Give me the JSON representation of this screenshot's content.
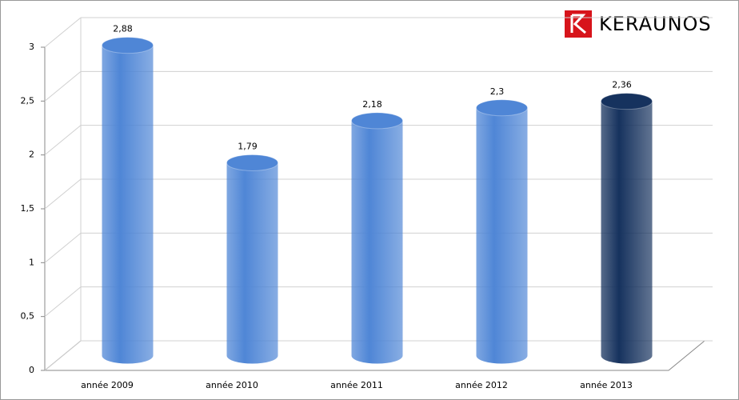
{
  "logo": "KERAUNOS",
  "chart_data": {
    "type": "bar",
    "categories": [
      "année 2009",
      "année 2010",
      "année 2011",
      "année 2012",
      "année 2013"
    ],
    "values": [
      2.88,
      1.79,
      2.18,
      2.3,
      2.36
    ],
    "value_labels": [
      "2,88",
      "1,79",
      "2,18",
      "2,3",
      "2,36"
    ],
    "colors": [
      "#4f86d6",
      "#4f86d6",
      "#4f86d6",
      "#4f86d6",
      "#16325e"
    ],
    "ylim": [
      0,
      3
    ],
    "yticks": [
      0,
      {
        "value": 0.5,
        "label": "0,5"
      },
      1,
      {
        "value": 1.5,
        "label": "1,5"
      },
      2,
      {
        "value": 2.5,
        "label": "2,5"
      },
      3
    ],
    "grid": true
  }
}
